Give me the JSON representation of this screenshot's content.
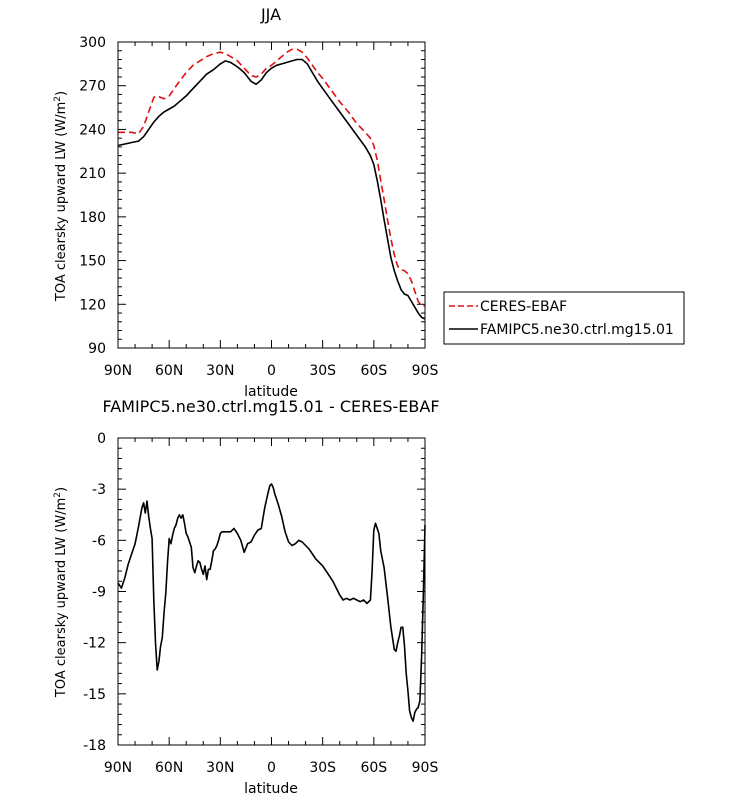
{
  "chart_data": [
    {
      "type": "line",
      "title": "JJA",
      "xlabel": "latitude",
      "ylabel": "TOA clearsky upward LW (W/m²)",
      "xticklabels": [
        "90N",
        "60N",
        "30N",
        "0",
        "30S",
        "60S",
        "90S"
      ],
      "xlim": [
        90,
        -90
      ],
      "ylim": [
        90,
        300
      ],
      "yticks": [
        90,
        120,
        150,
        180,
        210,
        240,
        270,
        300
      ],
      "legend_position": "right",
      "series": [
        {
          "name": "CERES-EBAF",
          "color": "#e01010",
          "style": "dashed",
          "x": [
            90,
            86,
            82,
            78,
            75,
            72,
            69,
            67,
            65,
            63,
            60,
            57,
            54,
            50,
            46,
            42,
            38,
            34,
            30,
            27,
            24,
            20,
            16,
            12,
            9,
            6,
            3,
            0,
            -3,
            -6,
            -9,
            -12,
            -15,
            -18,
            -21,
            -24,
            -27,
            -30,
            -35,
            -40,
            -45,
            -50,
            -55,
            -58,
            -60,
            -62,
            -64,
            -66,
            -68,
            -70,
            -72,
            -74,
            -76,
            -78,
            -80,
            -82,
            -84,
            -86,
            -88,
            -90
          ],
          "y": [
            238,
            238,
            238,
            237,
            242,
            252,
            262,
            263,
            262,
            261,
            263,
            268,
            273,
            279,
            284,
            287,
            290,
            292,
            293,
            292,
            290,
            287,
            282,
            277,
            276,
            278,
            282,
            284,
            287,
            290,
            293,
            295,
            295,
            293,
            289,
            284,
            279,
            275,
            267,
            259,
            252,
            244,
            238,
            234,
            229,
            219,
            205,
            192,
            178,
            165,
            154,
            146,
            144,
            143,
            141,
            136,
            129,
            122,
            119,
            119
          ]
        },
        {
          "name": "FAMIPC5.ne30.ctrl.mg15.01",
          "color": "#000000",
          "style": "solid",
          "x": [
            90,
            86,
            82,
            78,
            75,
            72,
            69,
            66,
            63,
            60,
            57,
            54,
            50,
            46,
            42,
            38,
            34,
            30,
            27,
            24,
            20,
            16,
            12,
            9,
            6,
            3,
            0,
            -3,
            -6,
            -9,
            -12,
            -15,
            -18,
            -21,
            -24,
            -27,
            -30,
            -35,
            -40,
            -45,
            -50,
            -55,
            -58,
            -60,
            -62,
            -64,
            -66,
            -68,
            -70,
            -72,
            -74,
            -76,
            -78,
            -80,
            -82,
            -84,
            -86,
            -88,
            -90
          ],
          "y": [
            229,
            230,
            231,
            232,
            235,
            240,
            245,
            249,
            252,
            254,
            256,
            259,
            263,
            268,
            273,
            278,
            281,
            285,
            287,
            286,
            283,
            279,
            273,
            271,
            274,
            279,
            282,
            284,
            285,
            286,
            287,
            288,
            288,
            285,
            279,
            273,
            268,
            260,
            252,
            244,
            236,
            228,
            222,
            216,
            205,
            192,
            178,
            165,
            152,
            143,
            136,
            130,
            127,
            126,
            122,
            118,
            114,
            111,
            110
          ]
        }
      ]
    },
    {
      "type": "line",
      "title": "FAMIPC5.ne30.ctrl.mg15.01 - CERES-EBAF",
      "xlabel": "latitude",
      "ylabel": "TOA clearsky upward LW (W/m²)",
      "xticklabels": [
        "90N",
        "60N",
        "30N",
        "0",
        "30S",
        "60S",
        "90S"
      ],
      "xlim": [
        90,
        -90
      ],
      "ylim": [
        -18,
        0
      ],
      "yticks": [
        -18,
        -15,
        -12,
        -9,
        -6,
        -3,
        0
      ],
      "series": [
        {
          "color": "#000000",
          "style": "solid",
          "x": [
            90,
            88,
            86,
            84,
            82,
            80,
            78,
            76,
            75,
            74,
            73,
            72,
            71,
            70,
            69,
            68,
            67,
            66,
            65,
            64,
            63,
            62,
            61,
            60,
            59,
            58,
            57,
            56,
            55,
            54,
            53,
            52,
            51,
            50,
            49,
            48,
            47,
            46,
            45,
            44,
            43,
            42,
            41,
            40,
            39,
            38,
            37,
            36,
            35,
            34,
            33,
            32,
            31,
            30,
            29,
            28,
            26,
            24,
            22,
            20,
            18,
            16,
            14,
            12,
            10,
            8,
            6,
            4,
            2,
            1,
            0,
            -1,
            -2,
            -4,
            -6,
            -8,
            -10,
            -12,
            -14,
            -16,
            -18,
            -20,
            -22,
            -24,
            -26,
            -28,
            -30,
            -32,
            -34,
            -36,
            -38,
            -40,
            -42,
            -44,
            -46,
            -48,
            -50,
            -52,
            -54,
            -56,
            -58,
            -59,
            -60,
            -61,
            -62,
            -63,
            -64,
            -66,
            -68,
            -70,
            -72,
            -73,
            -74,
            -75,
            -76,
            -77,
            -78,
            -79,
            -80,
            -81,
            -82,
            -83,
            -84,
            -85,
            -86,
            -87,
            -88,
            -89,
            -90
          ],
          "y": [
            -8.5,
            -8.8,
            -8.2,
            -7.4,
            -6.8,
            -6.2,
            -5.2,
            -4.1,
            -3.8,
            -4.4,
            -3.7,
            -4.6,
            -5.3,
            -5.9,
            -9.5,
            -12,
            -13.6,
            -13.1,
            -12.2,
            -11.7,
            -10.2,
            -9.1,
            -7.3,
            -5.9,
            -6.2,
            -5.7,
            -5.3,
            -5.1,
            -4.7,
            -4.5,
            -4.7,
            -4.5,
            -5.0,
            -5.6,
            -5.8,
            -6.1,
            -6.4,
            -7.6,
            -7.9,
            -7.5,
            -7.2,
            -7.3,
            -7.7,
            -8.0,
            -7.5,
            -8.3,
            -7.7,
            -7.7,
            -7.2,
            -6.6,
            -6.5,
            -6.3,
            -6.0,
            -5.6,
            -5.5,
            -5.5,
            -5.5,
            -5.5,
            -5.3,
            -5.6,
            -6.0,
            -6.7,
            -6.2,
            -6.1,
            -5.7,
            -5.4,
            -5.3,
            -4.1,
            -3.2,
            -2.8,
            -2.7,
            -2.9,
            -3.3,
            -3.9,
            -4.6,
            -5.5,
            -6.1,
            -6.3,
            -6.2,
            -6.0,
            -6.1,
            -6.3,
            -6.5,
            -6.8,
            -7.1,
            -7.3,
            -7.5,
            -7.8,
            -8.1,
            -8.4,
            -8.8,
            -9.2,
            -9.5,
            -9.4,
            -9.5,
            -9.4,
            -9.5,
            -9.6,
            -9.5,
            -9.7,
            -9.5,
            -7.8,
            -5.4,
            -5.0,
            -5.3,
            -5.6,
            -6.6,
            -7.6,
            -9.3,
            -11.1,
            -12.4,
            -12.5,
            -12.0,
            -11.6,
            -11.1,
            -11.1,
            -12.2,
            -13.8,
            -14.8,
            -16.0,
            -16.4,
            -16.6,
            -16.1,
            -15.9,
            -15.8,
            -15.4,
            -12.8,
            -9.3,
            -5.1
          ]
        }
      ]
    }
  ]
}
